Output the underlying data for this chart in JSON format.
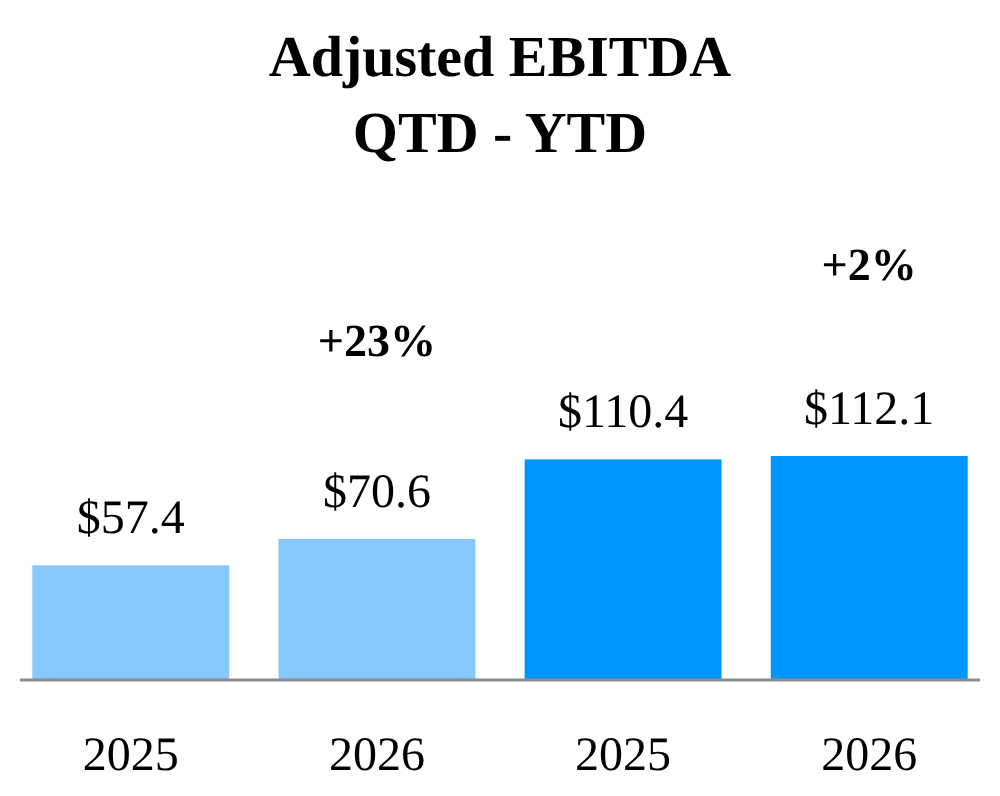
{
  "chart_data": {
    "type": "bar",
    "title": "Adjusted EBITDA\nQTD - YTD",
    "categories": [
      "2025",
      "2026",
      "2025",
      "2026"
    ],
    "values": [
      57.4,
      70.6,
      110.4,
      112.1
    ],
    "colors": [
      "#87c9fc",
      "#87c9fc",
      "#0096ff",
      "#0096ff"
    ],
    "value_labels": [
      "$57.4",
      "$70.6",
      "$110.4",
      "$112.1"
    ],
    "annotations": [
      "+23%",
      "+2%"
    ]
  }
}
